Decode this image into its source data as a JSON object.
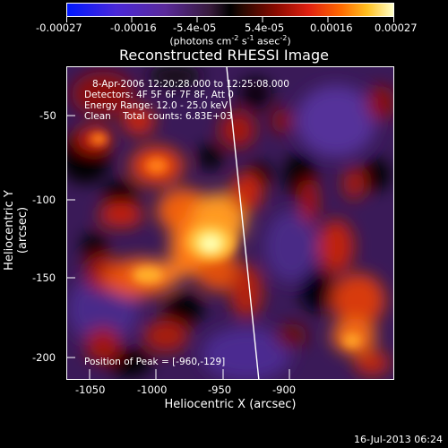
{
  "colorbar": {
    "ticks": [
      "-0.00027",
      "-0.00016",
      "-5.4e-05",
      "5.4e-05",
      "0.00016",
      "0.00027"
    ],
    "units_prefix": "(photons cm",
    "units_sup1": "-2",
    "units_mid": " s",
    "units_sup2": "-1",
    "units_mid2": " asec",
    "units_sup3": "-2",
    "units_suffix": ")"
  },
  "title": "Reconstructed RHESSI Image",
  "info": {
    "time_range": "8-Apr-2006 12:20:28.000 to 12:25:08.000",
    "detectors": "Detectors: 4F 5F 6F 7F 8F, Att 0",
    "energy": "Energy Range: 12.0 - 25.0 keV",
    "clean": "Clean    Total counts: 6.83E+03",
    "peak": "Position of Peak = [-960,-129]"
  },
  "x_axis": {
    "label": "Heliocentric X (arcsec)",
    "ticks": [
      "-1050",
      "-1000",
      "-950",
      "-900"
    ]
  },
  "y_axis": {
    "label": "Heliocentric Y (arcsec)",
    "ticks": [
      "-50",
      "-100",
      "-150",
      "-200"
    ]
  },
  "timestamp": "16-Jul-2013 06:24"
}
